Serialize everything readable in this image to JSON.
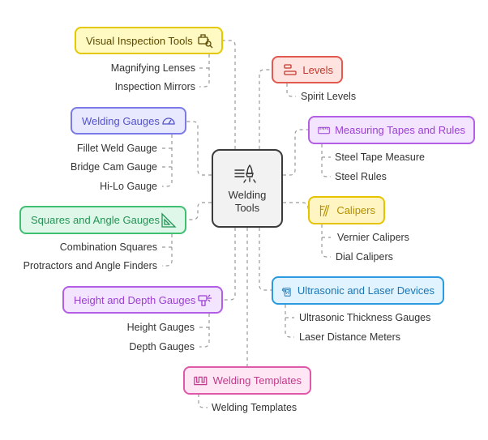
{
  "center": {
    "title_line1": "Welding",
    "title_line2": "Tools",
    "icon": "welding-torch-icon"
  },
  "categories": [
    {
      "id": "visual",
      "label": "Visual Inspection Tools",
      "icon": "engine-inspection-icon",
      "color": "#e6c800",
      "items": [
        "Magnifying Lenses",
        "Inspection Mirrors"
      ]
    },
    {
      "id": "levels",
      "label": "Levels",
      "icon": "level-icon",
      "color": "#e05a4f",
      "items": [
        "Spirit Levels"
      ]
    },
    {
      "id": "welding-gauges",
      "label": "Welding Gauges",
      "icon": "gauge-icon",
      "color": "#7b7be8",
      "items": [
        "Fillet Weld Gauge",
        "Bridge Cam Gauge",
        "Hi-Lo Gauge"
      ]
    },
    {
      "id": "tapes",
      "label": "Measuring Tapes and Rules",
      "icon": "measuring-tape-icon",
      "color": "#b25fe6",
      "items": [
        "Steel Tape Measure",
        "Steel Rules"
      ]
    },
    {
      "id": "squares",
      "label": "Squares and Angle Gauges",
      "icon": "set-square-icon",
      "color": "#3fbf72",
      "items": [
        "Combination Squares",
        "Protractors and Angle Finders"
      ]
    },
    {
      "id": "calipers",
      "label": "Calipers",
      "icon": "calipers-icon",
      "color": "#e6c300",
      "items": [
        "Vernier Calipers",
        "Dial Calipers"
      ]
    },
    {
      "id": "height",
      "label": "Height and Depth Gauges",
      "icon": "drill-icon",
      "color": "#b25fe6",
      "items": [
        "Height Gauges",
        "Depth Gauges"
      ]
    },
    {
      "id": "ultrasonic",
      "label": "Ultrasonic and Laser Devices",
      "icon": "ultrasonic-device-icon",
      "color": "#2b9ae0",
      "items": [
        "Ultrasonic Thickness Gauges",
        "Laser Distance Meters"
      ]
    },
    {
      "id": "templates",
      "label": "Welding Templates",
      "icon": "template-icon",
      "color": "#e058a8",
      "items": [
        "Welding Templates"
      ]
    }
  ]
}
